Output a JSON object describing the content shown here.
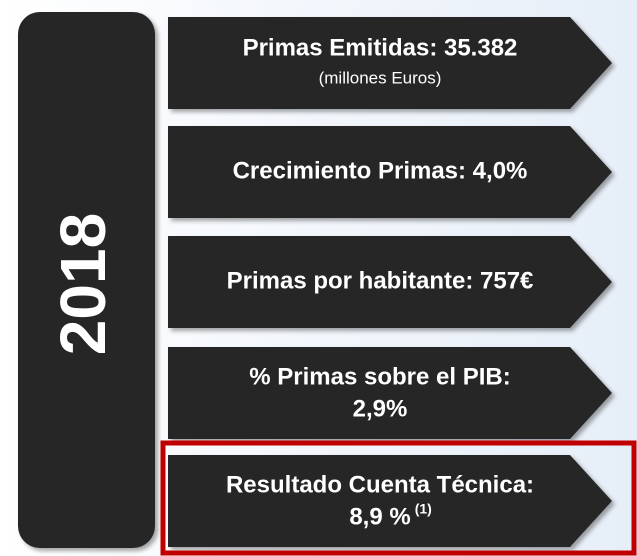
{
  "year": "2018",
  "items": [
    {
      "title": "Primas Emitidas: 35.382",
      "subtitle": "(millones Euros)"
    },
    {
      "title": "Crecimiento Primas: 4,0%"
    },
    {
      "title": "Primas por habitante: 757€"
    },
    {
      "title": "% Primas sobre el PIB:",
      "value": "2,9%"
    },
    {
      "title": "Resultado Cuenta Técnica:",
      "value": "8,9 %",
      "note": "(1)"
    }
  ]
}
